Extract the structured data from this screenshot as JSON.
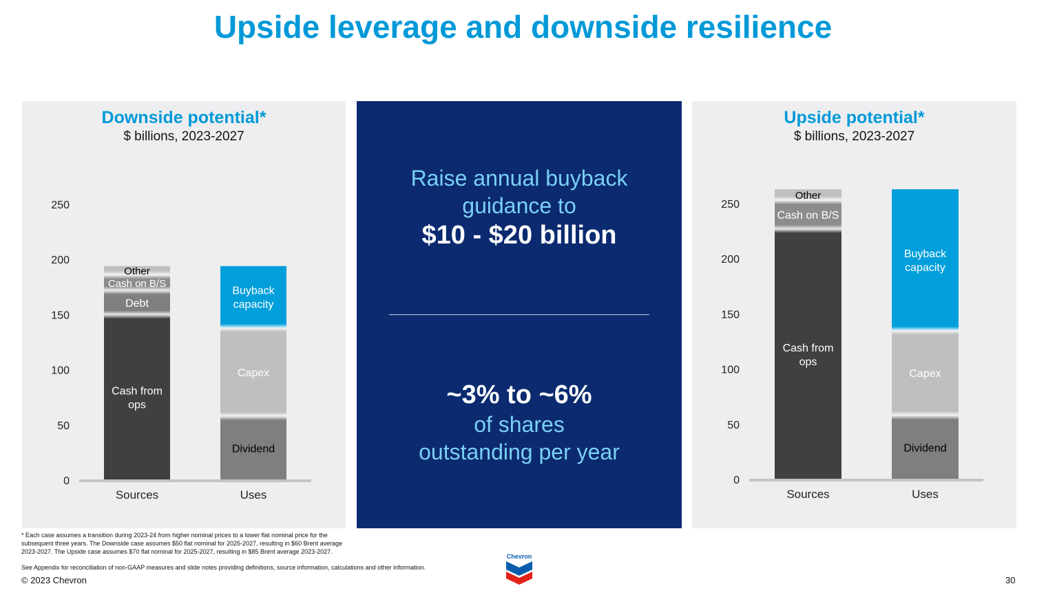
{
  "title": "Upside leverage and downside resilience",
  "center": {
    "line1": "Raise annual buyback",
    "line2": "guidance to",
    "amount": "$10 - $20 billion",
    "pct": "~3% to ~6%",
    "line3": "of shares",
    "line4": "outstanding per year"
  },
  "footnote": "* Each case assumes a transition during 2023-24 from higher nominal prices to a lower flat nominal price for the subsequent three years.  The Downside case assumes $50 flat nominal for 2025-2027, resulting in $60 Brent average 2023-2027. The Upside case assumes $70 flat nominal for 2025-2027, resulting in $85 Brent average 2023-2027.",
  "see_appendix": "See Appendix for reconciliation of non-GAAP measures and slide notes providing definitions, source information, calculations and other information.",
  "copyright": "© 2023 Chevron",
  "page_number": "30",
  "logo_text": "Chevron",
  "colors": {
    "title": "#0099d8",
    "panel": "#eeeef0",
    "center_bg": "#0b2a6f",
    "center_text": "#7ad0f5",
    "cash_from_ops": "#404040",
    "debt": "#7f7f7f",
    "cash_on_bs": "#8c8c8c",
    "other": "#bfbfbf",
    "dividend": "#7f7f7f",
    "capex": "#bfbfbf",
    "buyback": "#009fdb"
  },
  "chart_data": [
    {
      "type": "bar",
      "stacked": true,
      "title": "Downside potential*",
      "subtitle": "$ billions, 2023-2027",
      "categories": [
        "Sources",
        "Uses"
      ],
      "yticks": [
        "0",
        "50",
        "100",
        "150",
        "200",
        "250"
      ],
      "ylim": [
        0,
        250
      ],
      "series": [
        {
          "bar": "Sources",
          "name": "Cash from ops",
          "value": 150,
          "color": "#404040",
          "label_color": "#ffffff"
        },
        {
          "bar": "Sources",
          "name": "Debt",
          "value": 22,
          "color": "#7f7f7f",
          "label_color": "#ffffff"
        },
        {
          "bar": "Sources",
          "name": "Cash on B/S",
          "value": 14,
          "color": "#8c8c8c",
          "label_color": "#ffffff"
        },
        {
          "bar": "Sources",
          "name": "Other",
          "value": 8,
          "color": "#bfbfbf",
          "label_color": "#000000"
        },
        {
          "bar": "Uses",
          "name": "Dividend",
          "value": 58,
          "color": "#7f7f7f",
          "label_color": "#000000"
        },
        {
          "bar": "Uses",
          "name": "Capex",
          "value": 80,
          "color": "#bfbfbf",
          "label_color": "#ffffff"
        },
        {
          "bar": "Uses",
          "name": "Buyback capacity",
          "value": 56,
          "color": "#009fdb",
          "label_color": "#ffffff"
        }
      ]
    },
    {
      "type": "bar",
      "stacked": true,
      "title": "Upside potential*",
      "subtitle": "$ billions, 2023-2027",
      "categories": [
        "Sources",
        "Uses"
      ],
      "yticks": [
        "0",
        "50",
        "100",
        "150",
        "200",
        "250"
      ],
      "ylim": [
        0,
        250
      ],
      "series": [
        {
          "bar": "Sources",
          "name": "Cash from ops",
          "value": 227,
          "color": "#404040",
          "label_color": "#ffffff"
        },
        {
          "bar": "Sources",
          "name": "Cash on B/S",
          "value": 26,
          "color": "#8c8c8c",
          "label_color": "#ffffff"
        },
        {
          "bar": "Sources",
          "name": "Other",
          "value": 10,
          "color": "#bfbfbf",
          "label_color": "#000000"
        },
        {
          "bar": "Uses",
          "name": "Dividend",
          "value": 58,
          "color": "#7f7f7f",
          "label_color": "#000000"
        },
        {
          "bar": "Uses",
          "name": "Capex",
          "value": 77,
          "color": "#bfbfbf",
          "label_color": "#ffffff"
        },
        {
          "bar": "Uses",
          "name": "Buyback capacity",
          "value": 128,
          "color": "#009fdb",
          "label_color": "#ffffff"
        }
      ]
    }
  ]
}
